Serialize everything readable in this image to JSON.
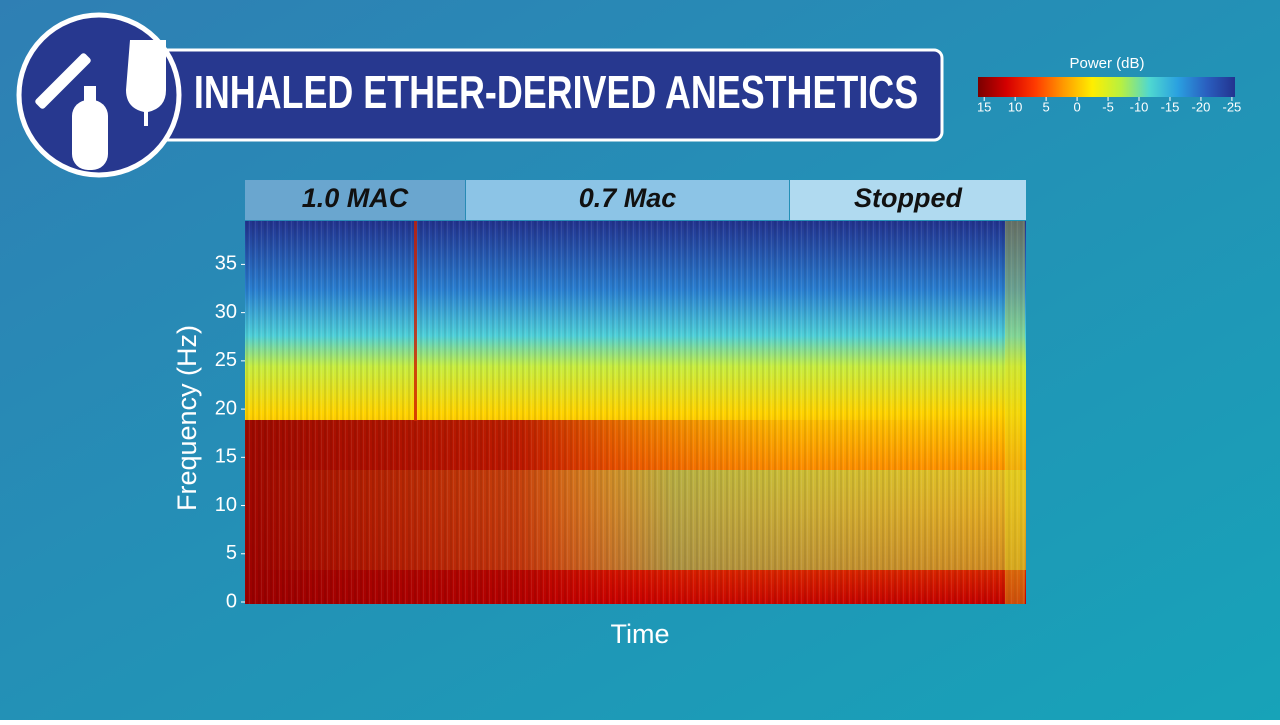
{
  "chart_data": {
    "type": "spectrogram",
    "title": "INHALED ETHER-DERIVED ANESTHETICS",
    "ylabel": "Frequency (Hz)",
    "xlabel": "Time",
    "segments": [
      "1.0 MAC",
      "0.7 Mac",
      "Stopped"
    ],
    "ylim": [
      0,
      39.5
    ],
    "yticks": [
      0,
      5,
      10,
      15,
      20,
      25,
      30,
      35
    ],
    "colorbar": {
      "label": "Power (dB)",
      "lim": [
        16,
        -25.5
      ],
      "ticks": [
        15,
        10,
        5,
        0,
        -5,
        -10,
        -15,
        -20,
        -25
      ],
      "colormap": [
        "#7a0000",
        "#d40000",
        "#ff3a00",
        "#ff9a00",
        "#ffee00",
        "#b8f040",
        "#4fd8d0",
        "#2aa0e0",
        "#2a5fc0",
        "#23338f"
      ]
    }
  }
}
